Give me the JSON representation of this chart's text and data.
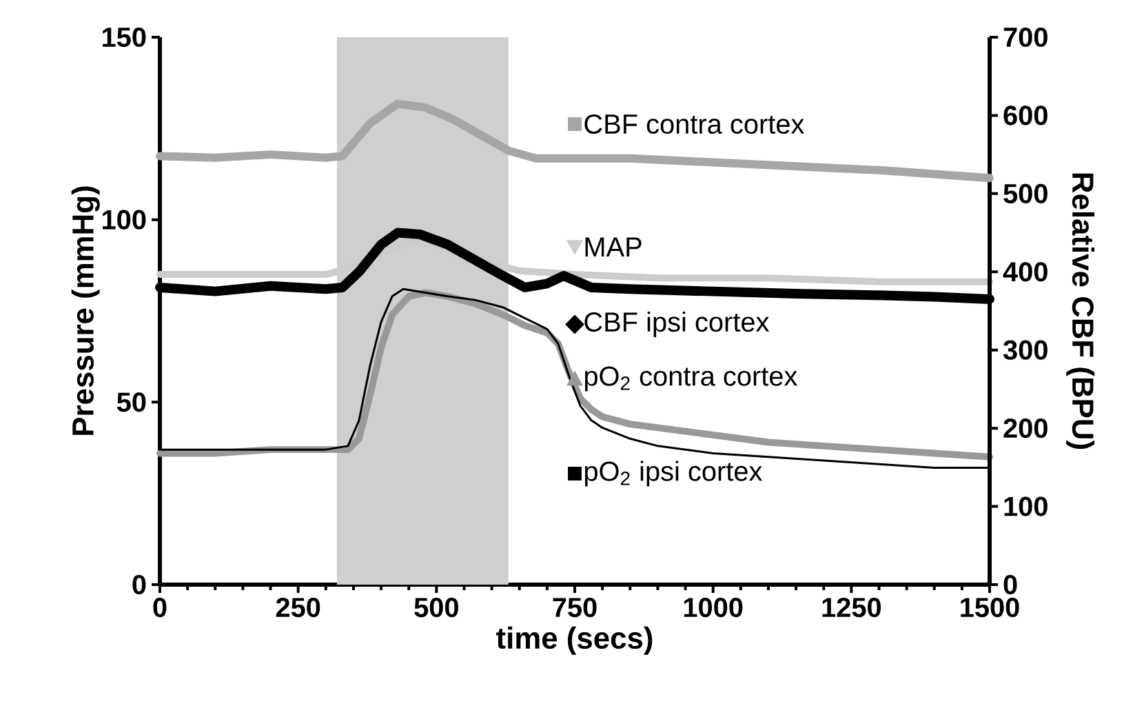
{
  "chart_data": {
    "type": "line",
    "xlabel": "time (secs)",
    "ylabel": "Pressure (mmHg)",
    "y2label": "Relative CBF (BPU)",
    "xlim": [
      0,
      1500
    ],
    "xticks": [
      0,
      250,
      500,
      750,
      1000,
      1250,
      1500
    ],
    "ylim": [
      0,
      150
    ],
    "yticks": [
      0,
      50,
      100,
      150
    ],
    "y2lim": [
      0,
      700
    ],
    "y2ticks": [
      0,
      100,
      200,
      300,
      400,
      500,
      600,
      700
    ],
    "bands": [
      {
        "axis": "x",
        "from": 320,
        "to": 630,
        "color": "#cfcfcf"
      }
    ],
    "legend": "right",
    "series": [
      {
        "name": "CBF contra cortex",
        "color": "#a6a6a6",
        "axis": "y2",
        "x": [
          0,
          100,
          200,
          300,
          330,
          380,
          430,
          480,
          530,
          580,
          630,
          680,
          750,
          850,
          1000,
          1150,
          1300,
          1400,
          1500
        ],
        "values": [
          548,
          546,
          550,
          546,
          548,
          590,
          615,
          610,
          595,
          575,
          555,
          545,
          545,
          545,
          540,
          535,
          530,
          525,
          520
        ]
      },
      {
        "name": "MAP",
        "color": "#cccccc",
        "x": [
          0,
          300,
          350,
          400,
          450,
          500,
          550,
          600,
          650,
          750,
          900,
          1100,
          1300,
          1500
        ],
        "values": [
          85,
          85,
          87,
          91,
          94,
          93,
          90,
          88,
          86,
          85,
          84,
          84,
          83,
          83
        ]
      },
      {
        "name": "CBF ipsi cortex",
        "color": "#000000",
        "axis": "y2",
        "x": [
          0,
          100,
          200,
          300,
          330,
          360,
          400,
          430,
          470,
          520,
          570,
          620,
          660,
          700,
          730,
          780,
          850,
          1000,
          1150,
          1300,
          1400,
          1500
        ],
        "values": [
          380,
          375,
          382,
          378,
          380,
          400,
          435,
          450,
          448,
          435,
          415,
          395,
          380,
          385,
          395,
          380,
          378,
          375,
          372,
          370,
          368,
          365
        ]
      },
      {
        "name": "pO$_{2}$ contra cortex",
        "color": "#999999",
        "x": [
          0,
          100,
          200,
          300,
          340,
          360,
          380,
          400,
          420,
          450,
          480,
          520,
          570,
          620,
          660,
          700,
          720,
          740,
          760,
          780,
          800,
          850,
          900,
          1000,
          1100,
          1200,
          1300,
          1400,
          1500
        ],
        "values": [
          36,
          36,
          37,
          37,
          37,
          40,
          52,
          65,
          74,
          79,
          80,
          79,
          77,
          74,
          71,
          69,
          66,
          58,
          51,
          48,
          46,
          44,
          43,
          41,
          39,
          38,
          37,
          36,
          35
        ]
      },
      {
        "name": "pO$_{2}$ ipsi cortex",
        "color": "#000000",
        "x": [
          0,
          100,
          200,
          300,
          340,
          360,
          380,
          400,
          420,
          440,
          480,
          520,
          570,
          620,
          660,
          700,
          720,
          740,
          760,
          780,
          800,
          850,
          900,
          1000,
          1100,
          1200,
          1300,
          1400,
          1500
        ],
        "values": [
          37,
          37,
          37,
          37,
          38,
          45,
          60,
          72,
          79,
          81,
          80,
          79,
          78,
          76,
          73,
          70,
          66,
          57,
          49,
          45,
          43,
          40,
          38,
          36,
          35,
          34,
          33,
          32,
          32
        ]
      }
    ]
  }
}
